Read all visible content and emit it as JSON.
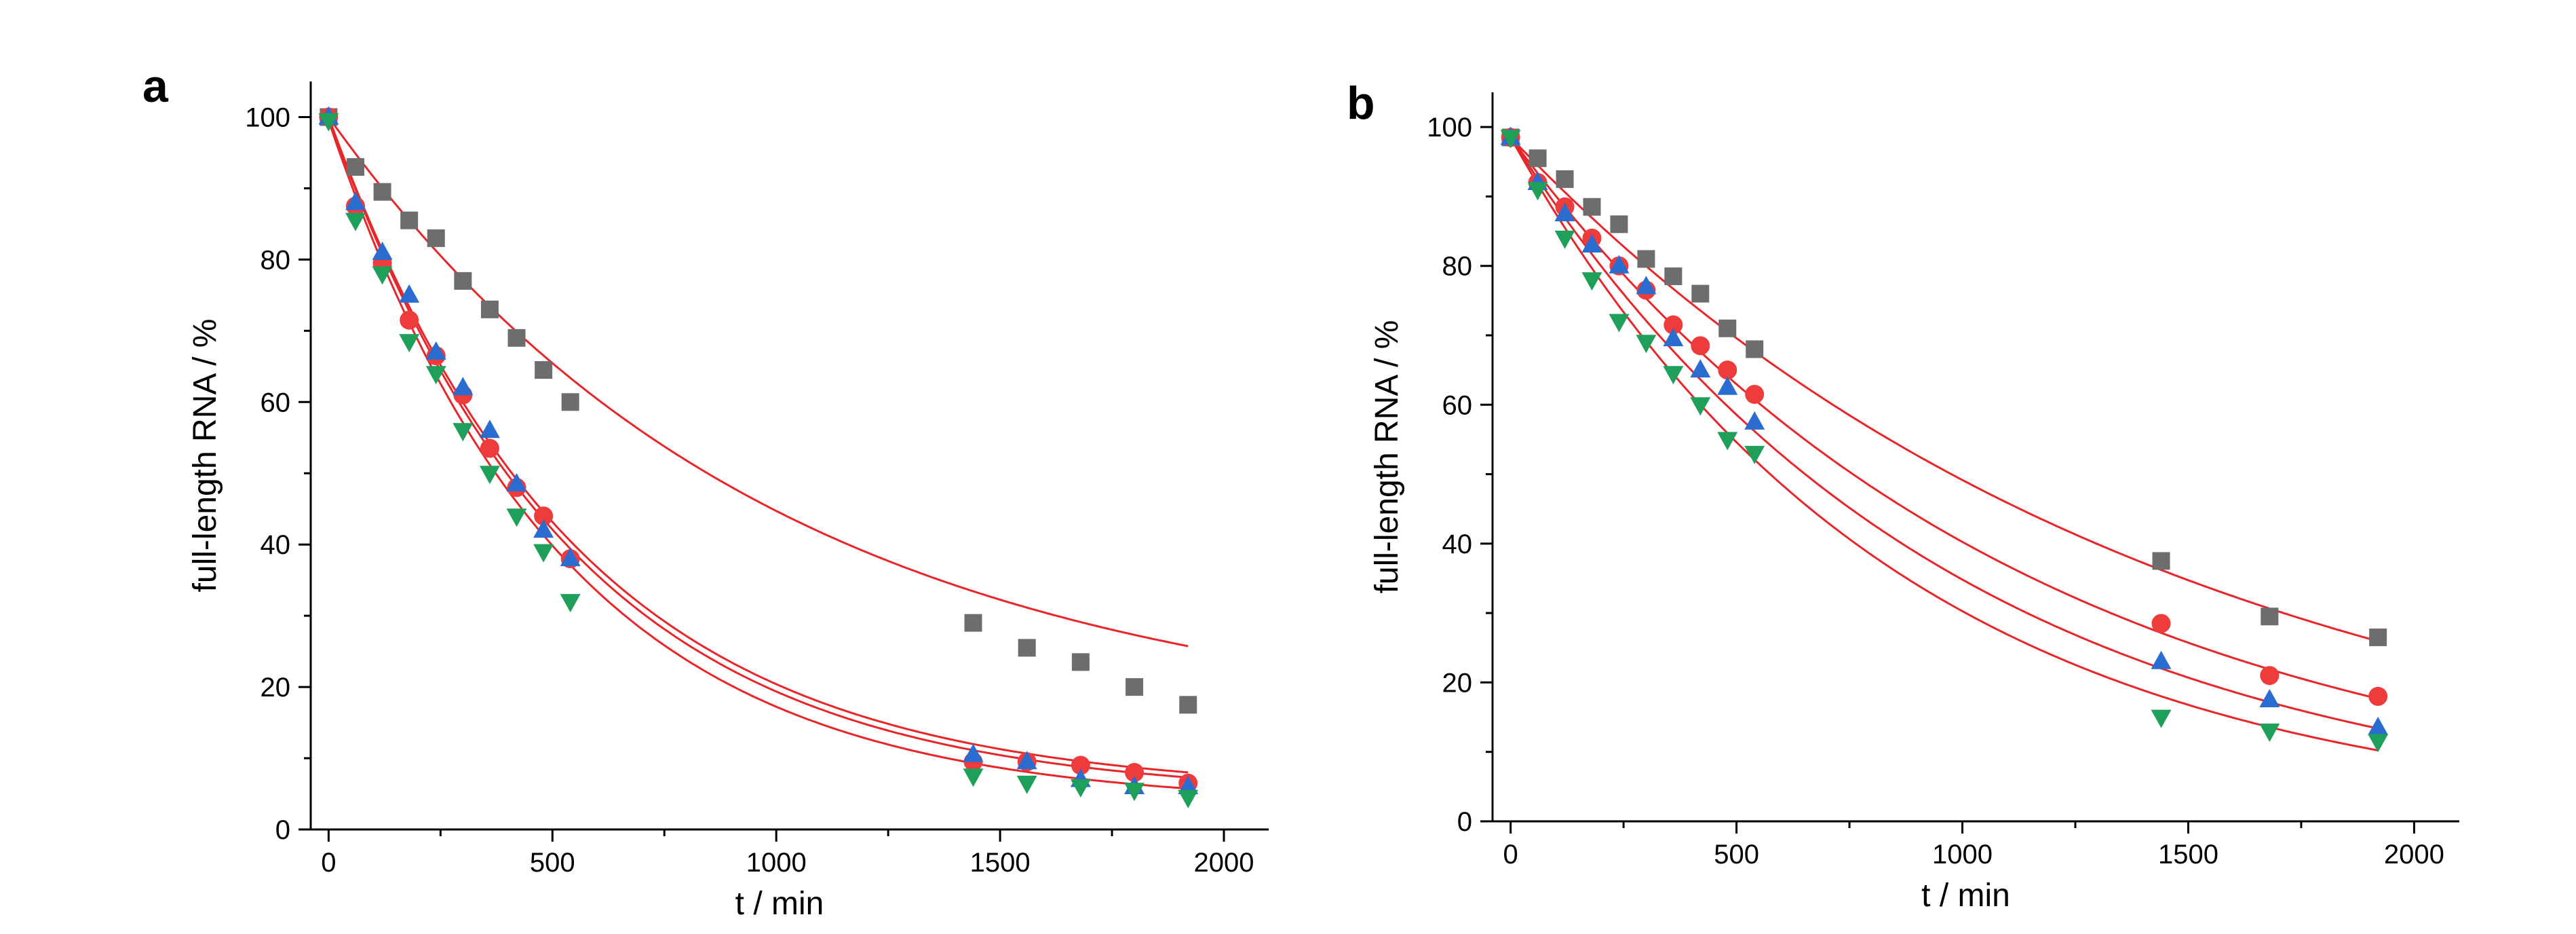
{
  "figure": {
    "panels": [
      {
        "letter": "a"
      },
      {
        "letter": "b"
      }
    ]
  },
  "colors": {
    "fit_line": "#e8262a",
    "series_square": "#6d6d6d",
    "series_circle": "#ee3b3b",
    "series_triangle_up": "#2a6ccf",
    "series_triangle_down": "#1fa05a"
  },
  "chart_data": [
    {
      "type": "scatter",
      "panel": "a",
      "title": "",
      "xlabel": "t / min",
      "ylabel": "full-length RNA / %",
      "xlim": [
        -40,
        2100
      ],
      "ylim": [
        0,
        105
      ],
      "xticks": [
        0,
        500,
        1000,
        1500,
        2000
      ],
      "yticks": [
        0,
        20,
        40,
        60,
        80,
        100
      ],
      "x_minor_step": 250,
      "y_minor_step": 10,
      "grid": false,
      "legend": "none",
      "fit_lines": "red exponential decay fit per series",
      "series": [
        {
          "marker": "square",
          "color": "#6d6d6d",
          "x": [
            0,
            60,
            120,
            180,
            240,
            300,
            360,
            420,
            480,
            540,
            1440,
            1560,
            1680,
            1800,
            1920
          ],
          "y": [
            100,
            93,
            89.5,
            85.5,
            83,
            77,
            73,
            69,
            64.5,
            60,
            29,
            25.5,
            23.5,
            20,
            17.5
          ],
          "fit": {
            "c": 13.53,
            "k": 0.00102,
            "x_end": 1920
          }
        },
        {
          "marker": "circle",
          "color": "#ee3b3b",
          "x": [
            0,
            60,
            120,
            180,
            240,
            300,
            360,
            420,
            480,
            540,
            1440,
            1560,
            1680,
            1800,
            1920
          ],
          "y": [
            100,
            87.5,
            79.5,
            71.5,
            66.5,
            61,
            53.5,
            48,
            44,
            38,
            9.5,
            9.5,
            9,
            8,
            6.5
          ],
          "fit": {
            "c": 5.19,
            "k": 0.00183,
            "x_end": 1920
          }
        },
        {
          "marker": "triangle-up",
          "color": "#2a6ccf",
          "x": [
            0,
            60,
            120,
            180,
            240,
            300,
            360,
            420,
            480,
            540,
            1440,
            1560,
            1680,
            1800,
            1920
          ],
          "y": [
            100,
            88,
            81,
            75,
            67,
            62,
            56,
            48.5,
            42,
            38,
            10.5,
            9.5,
            7,
            6,
            6
          ],
          "fit": {
            "c": 4.67,
            "k": 0.00187,
            "x_end": 1920
          }
        },
        {
          "marker": "triangle-down",
          "color": "#1fa05a",
          "x": [
            0,
            60,
            120,
            180,
            240,
            300,
            360,
            420,
            480,
            540,
            1440,
            1560,
            1680,
            1800,
            1920
          ],
          "y": [
            99.5,
            85.5,
            78,
            68.5,
            64,
            56,
            50,
            44,
            39,
            32,
            7.5,
            6.5,
            6,
            5.5,
            4.5
          ],
          "fit": {
            "c": 3.42,
            "k": 0.00194,
            "x_end": 1920
          }
        }
      ]
    },
    {
      "type": "scatter",
      "panel": "b",
      "title": "",
      "xlabel": "t / min",
      "ylabel": "full-length RNA / %",
      "xlim": [
        -40,
        2100
      ],
      "ylim": [
        0,
        105
      ],
      "xticks": [
        0,
        500,
        1000,
        1500,
        2000
      ],
      "yticks": [
        0,
        20,
        40,
        60,
        80,
        100
      ],
      "x_minor_step": 250,
      "y_minor_step": 10,
      "grid": false,
      "legend": "none",
      "fit_lines": "red exponential decay fit per series",
      "series": [
        {
          "marker": "square",
          "color": "#6d6d6d",
          "x": [
            0,
            60,
            120,
            180,
            240,
            300,
            360,
            420,
            480,
            540,
            1440,
            1680,
            1920
          ],
          "y": [
            98.5,
            95.5,
            92.5,
            88.5,
            86,
            81,
            78.5,
            76,
            71,
            68,
            37.5,
            29.5,
            26.5
          ],
          "fit": {
            "c": 0,
            "k": 0.000695,
            "x_end": 1920
          }
        },
        {
          "marker": "circle",
          "color": "#ee3b3b",
          "x": [
            0,
            60,
            120,
            180,
            240,
            300,
            360,
            420,
            480,
            540,
            1440,
            1680,
            1920
          ],
          "y": [
            98.5,
            92,
            88.5,
            84,
            80,
            76.5,
            71.5,
            68.5,
            65,
            61.5,
            28.5,
            21,
            18
          ],
          "fit": {
            "c": 0,
            "k": 0.000895,
            "x_end": 1920
          }
        },
        {
          "marker": "triangle-up",
          "color": "#2a6ccf",
          "x": [
            0,
            60,
            120,
            180,
            240,
            300,
            360,
            420,
            480,
            540,
            1440,
            1680,
            1920
          ],
          "y": [
            98.5,
            92,
            87.5,
            83,
            80,
            77,
            69.5,
            65,
            62.5,
            57.5,
            23,
            17.5,
            13.5
          ],
          "fit": {
            "c": 0,
            "k": 0.00104,
            "x_end": 1920
          }
        },
        {
          "marker": "triangle-down",
          "color": "#1fa05a",
          "x": [
            0,
            60,
            120,
            180,
            240,
            300,
            360,
            420,
            480,
            540,
            1440,
            1680,
            1920
          ],
          "y": [
            98.5,
            91,
            84,
            78,
            72,
            69,
            64.5,
            60,
            55,
            53,
            15,
            13,
            11.5
          ],
          "fit": {
            "c": 0,
            "k": 0.00118,
            "x_end": 1920
          }
        }
      ]
    }
  ]
}
